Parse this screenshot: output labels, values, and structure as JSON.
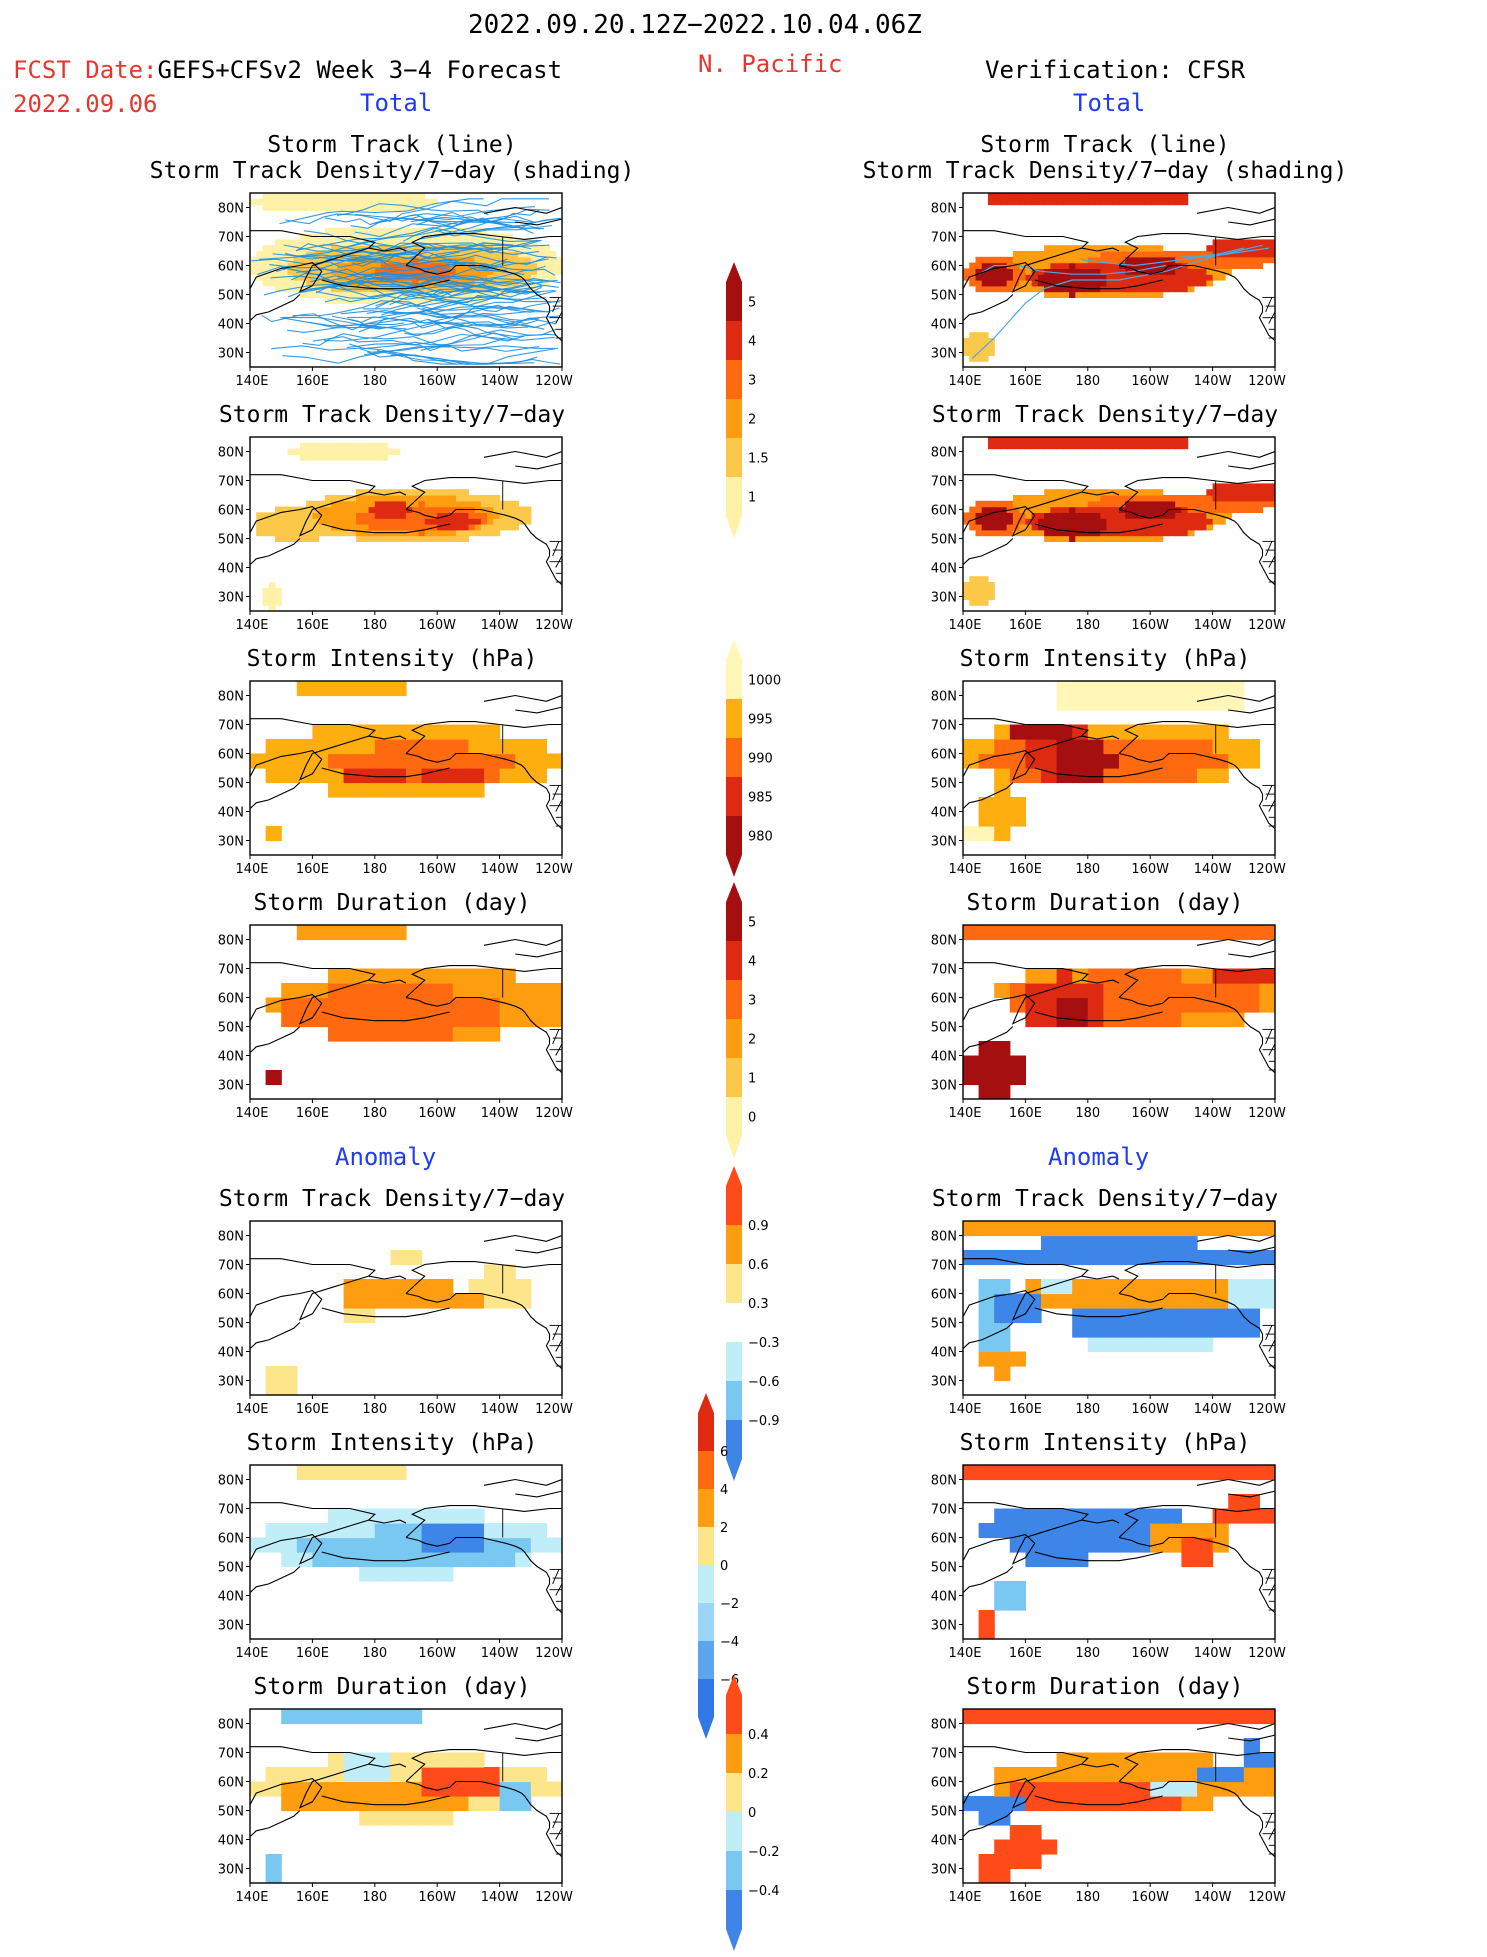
{
  "header": {
    "date_range": "2022.09.20.12Z−2022.10.04.06Z",
    "fcst_label": "FCST Date:",
    "fcst_date": "2022.09.06",
    "forecast_name": "GEFS+CFSv2 Week 3−4 Forecast",
    "region": "N. Pacific",
    "verification": "Verification: CFSR",
    "total_left": "Total",
    "total_right": "Total",
    "anomaly_left": "Anomaly",
    "anomaly_right": "Anomaly"
  },
  "panel_titles": {
    "track_line": "Storm Track (line)",
    "track_shading": "Storm Track Density/7−day (shading)",
    "density": "Storm Track Density/7−day",
    "intensity": "Storm Intensity (hPa)",
    "duration": "Storm Duration (day)"
  },
  "map_axes": {
    "lon_labels": [
      "140E",
      "160E",
      "180",
      "160W",
      "140W",
      "120W"
    ],
    "lat_labels": [
      "80N",
      "70N",
      "60N",
      "50N",
      "40N",
      "30N"
    ]
  },
  "colorbars": [
    {
      "name": "density-total",
      "labels": [
        "5",
        "4",
        "3",
        "2",
        "1.5",
        "1"
      ],
      "colors": [
        "#a50f0f",
        "#dd2a10",
        "#ff6a10",
        "#ff9d10",
        "#fbc84a",
        "#fff2a8"
      ]
    },
    {
      "name": "intensity-total",
      "labels": [
        "1000",
        "995",
        "990",
        "985",
        "980"
      ],
      "colors": [
        "#fff6b8",
        "#ffae10",
        "#ff6a10",
        "#dd2a10",
        "#a50f0f"
      ]
    },
    {
      "name": "duration-total",
      "labels": [
        "5",
        "4",
        "3",
        "2",
        "1",
        "0"
      ],
      "colors": [
        "#a50f0f",
        "#dd2a10",
        "#ff6a10",
        "#ff9d10",
        "#fbc84a",
        "#fff2a8"
      ]
    },
    {
      "name": "density-anom",
      "labels": [
        "0.9",
        "0.6",
        "0.3",
        "−0.3",
        "−0.6",
        "−0.9"
      ],
      "colors": [
        "#ff4b1a",
        "#ff9d10",
        "#fde58c",
        "#ffffff",
        "#bfeef9",
        "#79c8f2",
        "#3d86e8"
      ]
    },
    {
      "name": "intensity-anom",
      "labels": [
        "6",
        "4",
        "2",
        "0",
        "−2",
        "−4",
        "−6"
      ],
      "colors": [
        "#dd2a10",
        "#ff6a10",
        "#ff9d10",
        "#fde58c",
        "#bfeef9",
        "#9cd6f6",
        "#5aa7ec",
        "#2f78e6"
      ]
    },
    {
      "name": "duration-anom",
      "labels": [
        "0.4",
        "0.2",
        "0",
        "−0.2",
        "−0.4"
      ],
      "colors": [
        "#ff4b1a",
        "#ff9d10",
        "#fde58c",
        "#bfeef9",
        "#79c8f2",
        "#3d86e8"
      ]
    }
  ],
  "colors": {
    "forecast_red": "#e8352e",
    "section_blue": "#1f3cf0",
    "track_line": "#1e90e0"
  }
}
